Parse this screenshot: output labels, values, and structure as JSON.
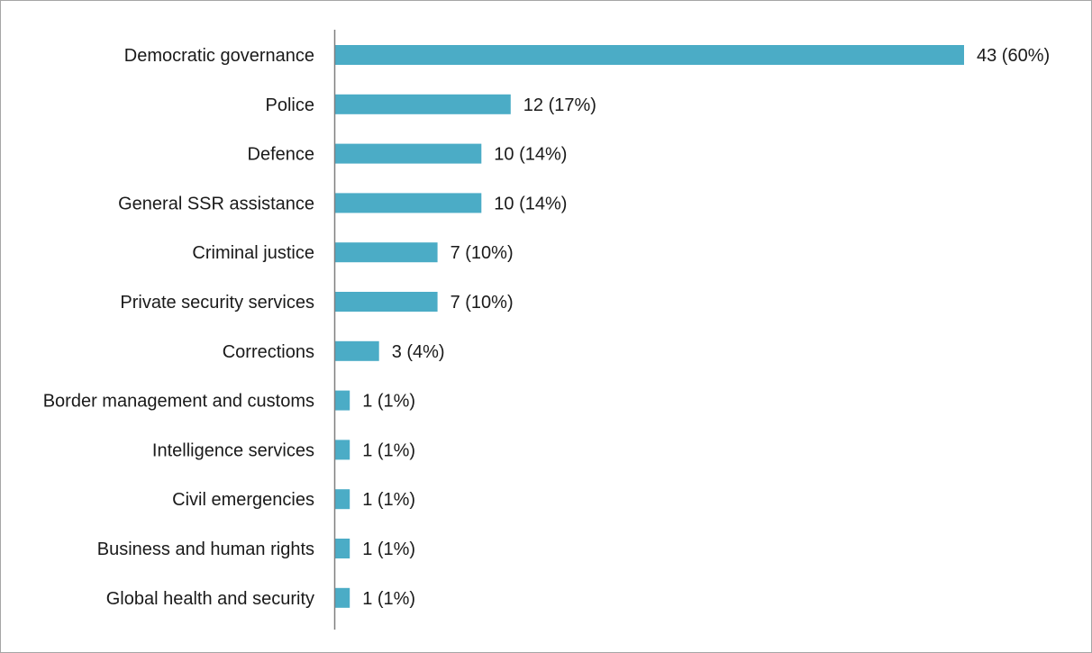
{
  "chart_data": {
    "type": "bar",
    "orientation": "horizontal",
    "title": "",
    "xlabel": "",
    "ylabel": "",
    "categories": [
      "Democratic governance",
      "Police",
      "Defence",
      "General SSR assistance",
      "Criminal justice",
      "Private security services",
      "Corrections",
      "Border management and customs",
      "Intelligence services",
      "Civil emergencies",
      "Business and human rights",
      "Global health and security"
    ],
    "values": [
      43,
      12,
      10,
      10,
      7,
      7,
      3,
      1,
      1,
      1,
      1,
      1
    ],
    "data_labels": [
      "43 (60%)",
      "12 (17%)",
      "10 (14%)",
      "10 (14%)",
      "7 (10%)",
      "7 (10%)",
      "3 (4%)",
      "1 (1%)",
      "1 (1%)",
      "1 (1%)",
      "1 (1%)",
      "1 (1%)"
    ],
    "xlim": [
      0,
      43
    ],
    "grid": false,
    "legend": "none",
    "bar_color": "#4bacc6"
  }
}
